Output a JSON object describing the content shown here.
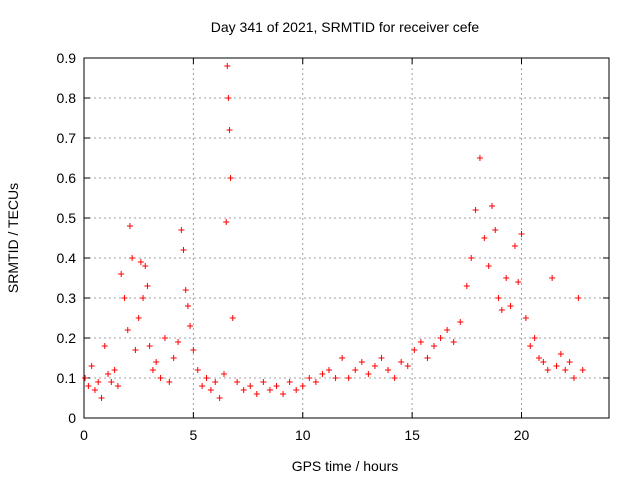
{
  "chart_data": {
    "type": "scatter",
    "title": "Day 341 of 2021, SRMTID for receiver cefe",
    "xlabel": "GPS time / hours",
    "ylabel": "SRMTID / TECUs",
    "xlim": [
      0,
      24
    ],
    "ylim": [
      0,
      0.9
    ],
    "xticks": [
      0,
      5,
      10,
      15,
      20
    ],
    "yticks": [
      0,
      0.1,
      0.2,
      0.3,
      0.4,
      0.5,
      0.6,
      0.7,
      0.8,
      0.9
    ],
    "grid": true,
    "marker": "+",
    "color": "#ff0000",
    "series": [
      {
        "name": "SRMTID",
        "x": [
          0.05,
          0.2,
          0.35,
          0.5,
          0.65,
          0.8,
          0.95,
          1.1,
          1.25,
          1.4,
          1.55,
          1.7,
          1.85,
          2.0,
          2.1,
          2.2,
          2.35,
          2.5,
          2.6,
          2.7,
          2.8,
          2.9,
          3.0,
          3.15,
          3.3,
          3.5,
          3.7,
          3.9,
          4.1,
          4.3,
          4.45,
          4.55,
          4.65,
          4.75,
          4.85,
          5.0,
          5.2,
          5.4,
          5.6,
          5.8,
          6.0,
          6.2,
          6.4,
          6.5,
          6.55,
          6.6,
          6.65,
          6.7,
          6.8,
          7.0,
          7.3,
          7.6,
          7.9,
          8.2,
          8.5,
          8.8,
          9.1,
          9.4,
          9.7,
          10.0,
          10.3,
          10.6,
          10.9,
          11.2,
          11.5,
          11.8,
          12.1,
          12.4,
          12.7,
          13.0,
          13.3,
          13.6,
          13.9,
          14.2,
          14.5,
          14.8,
          15.1,
          15.4,
          15.7,
          16.0,
          16.3,
          16.6,
          16.9,
          17.2,
          17.5,
          17.7,
          17.9,
          18.1,
          18.3,
          18.5,
          18.65,
          18.8,
          18.95,
          19.1,
          19.3,
          19.5,
          19.7,
          19.85,
          20.0,
          20.2,
          20.4,
          20.6,
          20.8,
          21.0,
          21.2,
          21.4,
          21.6,
          21.8,
          22.0,
          22.2,
          22.4,
          22.6,
          22.8
        ],
        "values": [
          0.1,
          0.08,
          0.13,
          0.07,
          0.09,
          0.05,
          0.18,
          0.11,
          0.09,
          0.12,
          0.08,
          0.36,
          0.3,
          0.22,
          0.48,
          0.4,
          0.17,
          0.25,
          0.39,
          0.3,
          0.38,
          0.33,
          0.18,
          0.12,
          0.14,
          0.1,
          0.2,
          0.09,
          0.15,
          0.19,
          0.47,
          0.42,
          0.32,
          0.28,
          0.23,
          0.17,
          0.12,
          0.08,
          0.1,
          0.07,
          0.09,
          0.05,
          0.11,
          0.49,
          0.88,
          0.8,
          0.72,
          0.6,
          0.25,
          0.09,
          0.07,
          0.08,
          0.06,
          0.09,
          0.07,
          0.08,
          0.06,
          0.09,
          0.07,
          0.08,
          0.1,
          0.09,
          0.11,
          0.12,
          0.1,
          0.15,
          0.1,
          0.12,
          0.14,
          0.11,
          0.13,
          0.15,
          0.12,
          0.1,
          0.14,
          0.13,
          0.17,
          0.19,
          0.15,
          0.18,
          0.2,
          0.22,
          0.19,
          0.24,
          0.33,
          0.4,
          0.52,
          0.65,
          0.45,
          0.38,
          0.53,
          0.47,
          0.3,
          0.27,
          0.35,
          0.28,
          0.43,
          0.34,
          0.46,
          0.25,
          0.18,
          0.2,
          0.15,
          0.14,
          0.12,
          0.35,
          0.13,
          0.16,
          0.12,
          0.14,
          0.1,
          0.3,
          0.12
        ]
      }
    ]
  }
}
